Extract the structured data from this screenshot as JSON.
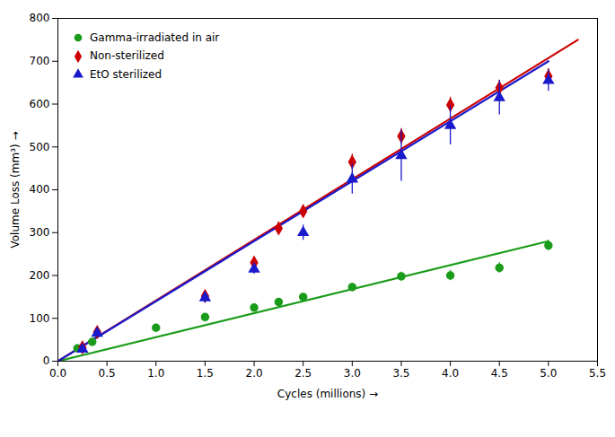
{
  "chart_data": {
    "type": "scatter",
    "xlabel": "Cycles (millions)",
    "ylabel": "Volume Loss (mm³)",
    "xlim": [
      0,
      5.5
    ],
    "ylim": [
      0,
      800
    ],
    "xticks": [
      {
        "value": 0,
        "label": "0.0"
      },
      {
        "value": 0.5,
        "label": "0.5"
      },
      {
        "value": 1.0,
        "label": "1.0"
      },
      {
        "value": 1.5,
        "label": "1.5"
      },
      {
        "value": 2.0,
        "label": "2.0"
      },
      {
        "value": 2.5,
        "label": "2.5"
      },
      {
        "value": 3.0,
        "label": "3.0"
      },
      {
        "value": 3.5,
        "label": "3.5"
      },
      {
        "value": 4.0,
        "label": "4.0"
      },
      {
        "value": 4.5,
        "label": "4.5"
      },
      {
        "value": 5.0,
        "label": "5.0"
      },
      {
        "value": 5.5,
        "label": "5.5"
      }
    ],
    "yticks": [
      0,
      100,
      200,
      300,
      400,
      500,
      600,
      700,
      800
    ],
    "legend": "top-left",
    "series": [
      {
        "name": "Gamma-irradiated in air",
        "color": "#1a9c1a",
        "marker": "circle",
        "x": [
          0.2,
          0.35,
          1.0,
          1.5,
          2.0,
          2.25,
          2.5,
          3.0,
          3.5,
          4.0,
          4.5,
          5.0
        ],
        "values": [
          30,
          45,
          78,
          103,
          125,
          138,
          150,
          173,
          198,
          200,
          218,
          270
        ],
        "yerr": [
          5,
          5,
          8,
          8,
          8,
          8,
          8,
          8,
          10,
          12,
          12,
          12
        ],
        "fit_x": [
          0,
          5.0
        ],
        "fit_y": [
          0,
          280
        ]
      },
      {
        "name": "Non-sterilized",
        "color": "#cc0000",
        "marker": "diamond",
        "x": [
          0.25,
          0.4,
          1.5,
          2.0,
          2.25,
          2.5,
          3.0,
          3.5,
          4.0,
          4.5,
          5.0
        ],
        "values": [
          32,
          68,
          152,
          230,
          310,
          350,
          465,
          525,
          598,
          638,
          665
        ],
        "yerr": [
          5,
          8,
          12,
          12,
          15,
          15,
          18,
          18,
          18,
          18,
          18
        ],
        "fit_x": [
          0,
          5.3
        ],
        "fit_y": [
          0,
          750
        ]
      },
      {
        "name": "EtO sterilized",
        "color": "#1a1acc",
        "marker": "triangle",
        "x": [
          0.25,
          0.4,
          1.5,
          2.0,
          2.5,
          3.0,
          3.5,
          4.0,
          4.5,
          5.0
        ],
        "values": [
          28,
          65,
          148,
          215,
          300,
          425,
          480,
          550,
          615,
          655
        ],
        "yerr": [
          8,
          8,
          12,
          12,
          18,
          35,
          60,
          45,
          40,
          25
        ],
        "fit_x": [
          0,
          5.0
        ],
        "fit_y": [
          0,
          700
        ]
      }
    ]
  }
}
